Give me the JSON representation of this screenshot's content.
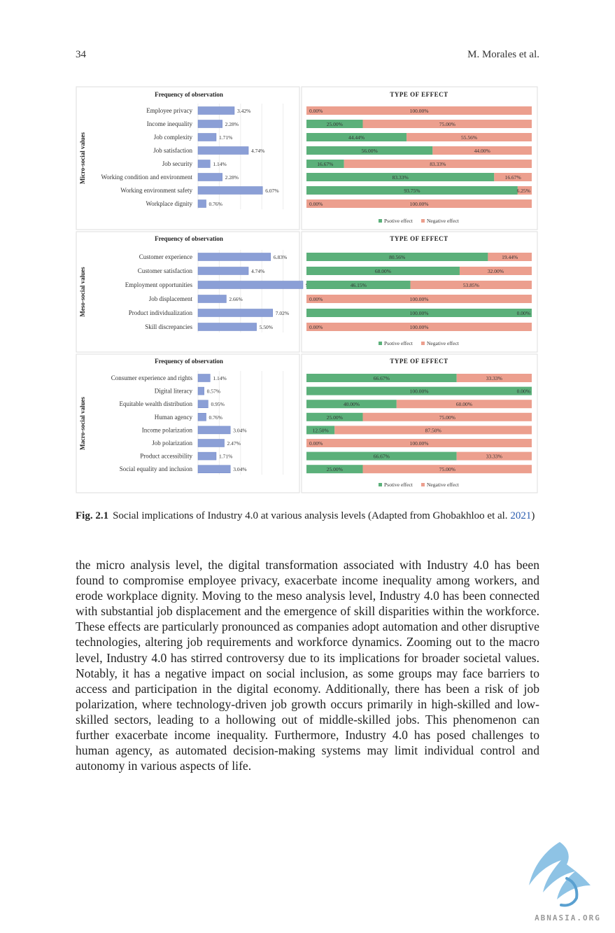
{
  "header": {
    "page_number": "34",
    "authors": "M. Morales et al."
  },
  "figure": {
    "chart_data": [
      {
        "type": "bar",
        "panel": "micro",
        "ylabel": "Micro-social values",
        "title": "Frequency of  observation",
        "categories": [
          "Employee privacy",
          "Income inequality",
          "Job complexity",
          "Job satisfaction",
          "Job security",
          "Working condition and environment",
          "Working environment safety",
          "Workplace dignity"
        ],
        "values": [
          3.42,
          2.28,
          1.71,
          4.74,
          1.14,
          2.28,
          6.07,
          0.76
        ],
        "value_labels": [
          "3.42%",
          "2.28%",
          "1.71%",
          "4.74%",
          "1.14%",
          "2.28%",
          "6.07%",
          "0.76%"
        ],
        "colors": {
          "bar": "#8b9fd6"
        }
      },
      {
        "type": "bar",
        "stacked": true,
        "panel": "micro",
        "title": "TYPE OF EFFECT",
        "categories": [
          "Employee privacy",
          "Income inequality",
          "Job complexity",
          "Job satisfaction",
          "Job security",
          "Working condition and environment",
          "Working environment safety",
          "Workplace dignity"
        ],
        "series": [
          {
            "name": "Psotive effect",
            "values": [
              0,
              25,
              44.44,
              56,
              16.67,
              83.33,
              93.75,
              0
            ],
            "labels": [
              "0.00%",
              "25.00%",
              "44.44%",
              "56.00%",
              "16.67%",
              "83.33%",
              "93.75%",
              "0.00%"
            ]
          },
          {
            "name": "Negative effect",
            "values": [
              100,
              75,
              55.56,
              44,
              83.33,
              16.67,
              6.25,
              100
            ],
            "labels": [
              "100.00%",
              "75.00%",
              "55.56%",
              "44.00%",
              "83.33%",
              "16.67%",
              "6.25%",
              "100.00%"
            ]
          }
        ],
        "legend": [
          "Psotive effect",
          "Negative effect"
        ],
        "colors": {
          "positive": "#5bb07a",
          "negative": "#ec9f8e"
        }
      },
      {
        "type": "bar",
        "panel": "meso",
        "ylabel": "Meso-social values",
        "title": "Frequency of  observation",
        "categories": [
          "Customer experience",
          "Customer satisfaction",
          "Employment opportunities",
          "Job displacement",
          "Product individualization",
          "Skill discrepancies"
        ],
        "values": [
          6.83,
          4.74,
          9.87,
          2.66,
          7.02,
          5.5
        ],
        "value_labels": [
          "6.83%",
          "4.74%",
          "9.87%",
          "2.66%",
          "7.02%",
          "5.50%"
        ],
        "colors": {
          "bar": "#8b9fd6"
        }
      },
      {
        "type": "bar",
        "stacked": true,
        "panel": "meso",
        "title": "TYPE OF EFFECT",
        "categories": [
          "Customer experience",
          "Customer satisfaction",
          "Employment opportunities",
          "Job displacement",
          "Product individualization",
          "Skill discrepancies"
        ],
        "series": [
          {
            "name": "Psotive effect",
            "values": [
              80.56,
              68,
              46.15,
              0,
              100,
              0
            ],
            "labels": [
              "80.56%",
              "68.00%",
              "46.15%",
              "0.00%",
              "100.00%",
              "0.00%"
            ]
          },
          {
            "name": "Negative effect",
            "values": [
              19.44,
              32,
              53.85,
              100,
              0,
              100
            ],
            "labels": [
              "19.44%",
              "32.00%",
              "53.85%",
              "100.00%",
              "0.00%",
              "100.00%"
            ]
          }
        ],
        "legend": [
          "Psotive effect",
          "Negative effect"
        ],
        "colors": {
          "positive": "#5bb07a",
          "negative": "#ec9f8e"
        }
      },
      {
        "type": "bar",
        "panel": "macro",
        "ylabel": "Macro-social values",
        "title": "Frequency of  observation",
        "categories": [
          "Consumer experience and rights",
          "Digital literacy",
          "Equitable wealth distribution",
          "Human agency",
          "Income polarization",
          "Job polarization",
          "Product accessibility",
          "Social equality and inclusion"
        ],
        "values": [
          1.14,
          0.57,
          0.95,
          0.76,
          3.04,
          2.47,
          1.71,
          3.04
        ],
        "value_labels": [
          "1.14%",
          "0.57%",
          "0.95%",
          "0.76%",
          "3.04%",
          "2.47%",
          "1.71%",
          "3.04%"
        ],
        "colors": {
          "bar": "#8b9fd6"
        }
      },
      {
        "type": "bar",
        "stacked": true,
        "panel": "macro",
        "title": "TYPE OF EFFECT",
        "categories": [
          "Consumer experience and rights",
          "Digital literacy",
          "Equitable wealth distribution",
          "Human agency",
          "Income polarization",
          "Job polarization",
          "Product accessibility",
          "Social equality and inclusion"
        ],
        "series": [
          {
            "name": "Psotive effect",
            "values": [
              66.67,
              100,
              40,
              25,
              12.5,
              0,
              66.67,
              25
            ],
            "labels": [
              "66.67%",
              "100.00%",
              "40.00%",
              "25.00%",
              "12.50%",
              "0.00%",
              "66.67%",
              "25.00%"
            ]
          },
          {
            "name": "Negative effect",
            "values": [
              33.33,
              0,
              60,
              75,
              87.5,
              100,
              33.33,
              75
            ],
            "labels": [
              "33.33%",
              "0.00%",
              "60.00%",
              "75.00%",
              "87.50%",
              "100.00%",
              "33.33%",
              "75.00%"
            ]
          }
        ],
        "legend": [
          "Psotive effect",
          "Negative effect"
        ],
        "colors": {
          "positive": "#5bb07a",
          "negative": "#ec9f8e"
        }
      }
    ]
  },
  "caption": {
    "label": "Fig. 2.1",
    "text": "Social implications of Industry 4.0 at various analysis levels (Adapted from Ghobakhloo et al. ",
    "link": "2021",
    "close": ")"
  },
  "body_text": "the micro analysis level, the digital transformation associated with Industry 4.0 has been found to compromise employee privacy, exacerbate income inequality among workers, and erode workplace dignity. Moving to the meso analysis level, Industry 4.0 has been connected with substantial job displacement and the emergence of skill disparities within the workforce. These effects are particularly pronounced as com­panies adopt automation and other disruptive technologies, altering job require­ments and workforce dynamics. Zooming out to the macro level, Industry 4.0 has stirred controversy due to its implications for broader societal values. Notably, it has a negative impact on social inclusion, as some groups may face barriers to access and participation in the digital economy. Additionally, there has been a risk of job polarization, where technology-driven job growth occurs primarily in high-skilled and low-skilled sectors, leading to a hollowing out of middle-skilled jobs. This phe­nomenon can further exacerbate income inequality. Furthermore, Industry 4.0 has posed challenges to human agency, as automated decision-making systems may limit individual control and autonomy in various aspects of life.",
  "watermark": {
    "text": "ABNASIA.ORG",
    "icon": "bird-logo-icon"
  }
}
